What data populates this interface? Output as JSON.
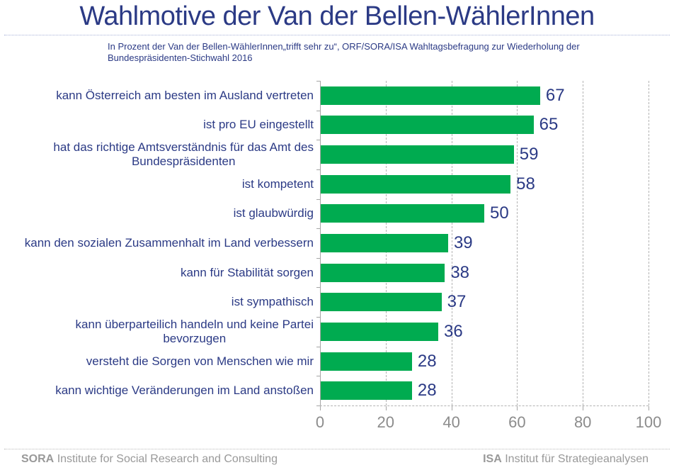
{
  "title": "Wahlmotive der Van der Bellen-WählerInnen",
  "subtitle": "In Prozent der Van der Bellen-WählerInnen„trifft sehr zu“, ORF/SORA/ISA Wahltagsbefragung zur Wiederholung der\nBundespräsidenten-Stichwahl 2016",
  "colors": {
    "bar_green": "#00AB50",
    "navy_text": "#2B3A85",
    "axis_line_gray": "#A6A6A6",
    "gridline_gray": "#B3B3B3",
    "axis_label_gray": "#8C8C8C",
    "footer_gray": "#999999"
  },
  "chart_data": {
    "type": "bar",
    "orientation": "horizontal",
    "title": "Wahlmotive der Van der Bellen-WählerInnen",
    "subtitle": "In Prozent der Van der Bellen-WählerInnen„trifft sehr zu“, ORF/SORA/ISA Wahltagsbefragung zur Wiederholung der Bundespräsidenten-Stichwahl 2016",
    "categories": [
      "kann Österreich am besten im Ausland vertreten",
      "ist pro EU eingestellt",
      "hat das richtige Amtsverständnis für das Amt des\nBundespräsidenten",
      "ist kompetent",
      "ist glaubwürdig",
      "kann den sozialen Zusammenhalt im Land verbessern",
      "kann für Stabilität sorgen",
      "ist sympathisch",
      "kann überparteilich handeln und keine Partei\nbevorzugen",
      "versteht die Sorgen von Menschen wie mir",
      "kann wichtige Veränderungen im Land anstoßen"
    ],
    "values": [
      67,
      65,
      59,
      58,
      50,
      39,
      38,
      37,
      36,
      28,
      28
    ],
    "xlim": [
      0,
      100
    ],
    "xticks": [
      0,
      20,
      40,
      60,
      80,
      100
    ],
    "bar_color": "#00AB50",
    "grid": "vertical-dashed",
    "value_labels": "outside-end",
    "legend": "none"
  },
  "footer": {
    "left_brand": "SORA",
    "left_text": "Institute for Social Research and Consulting",
    "right_brand": "ISA",
    "right_text": "Institut für Strategieanalysen"
  }
}
